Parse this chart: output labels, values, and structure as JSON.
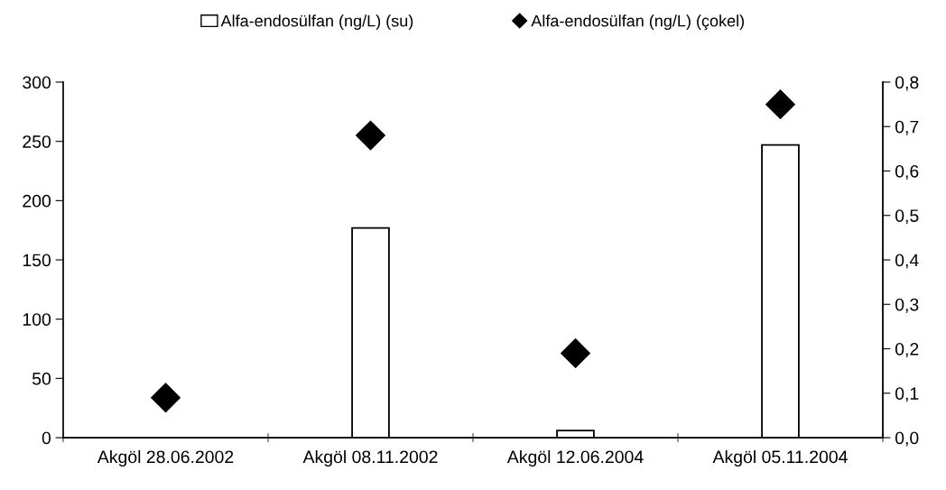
{
  "chart_data": {
    "type": "bar",
    "categories": [
      "Akgöl 28.06.2002",
      "Akgöl 08.11.2002",
      "Akgöl 12.06.2004",
      "Akgöl 05.11.2004"
    ],
    "series": [
      {
        "name": "Alfa-endosülfan (ng/L) (su)",
        "color": "#ffffff",
        "values": [
          null,
          177,
          6,
          247
        ]
      },
      {
        "name": "Alfa-endosülfan (ng/L) (çokel)",
        "type": "scatter",
        "axis": "y2",
        "marker": "diamond",
        "color": "#000000",
        "values": [
          0.09,
          0.68,
          0.19,
          0.75
        ]
      }
    ],
    "ylim": [
      0,
      300
    ],
    "yticks": [
      0,
      50,
      100,
      150,
      200,
      250,
      300
    ],
    "y2lim": [
      0,
      0.8
    ],
    "y2ticks": [
      {
        "value": 0,
        "label": "0,0"
      },
      {
        "value": 0.1,
        "label": "0,1"
      },
      {
        "value": 0.2,
        "label": "0,2"
      },
      {
        "value": 0.3,
        "label": "0,3"
      },
      {
        "value": 0.4,
        "label": "0,4"
      },
      {
        "value": 0.5,
        "label": "0,5"
      },
      {
        "value": 0.6,
        "label": "0,6"
      },
      {
        "value": 0.7,
        "label": "0,7"
      },
      {
        "value": 0.8,
        "label": "0,8"
      }
    ],
    "grid": false,
    "legend": "top"
  }
}
